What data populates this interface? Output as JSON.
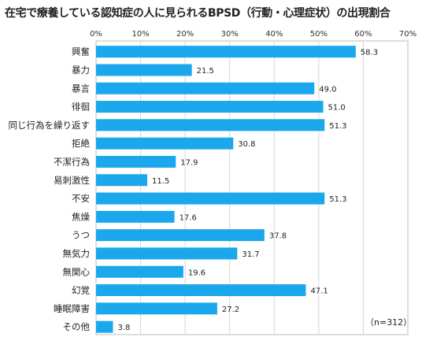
{
  "title": "在宅で療養している認知症の人に見られるBPSD（行動・心理症状）の出現割合",
  "note": "（n=312）",
  "chart_data": {
    "type": "bar",
    "orientation": "horizontal",
    "title": "在宅で療養している認知症の人に見られるBPSD（行動・心理症状）の出現割合",
    "xlim": [
      0,
      70
    ],
    "tick_values": [
      0,
      10,
      20,
      30,
      40,
      50,
      60,
      70
    ],
    "tick_labels": [
      "0%",
      "10%",
      "20%",
      "30%",
      "40%",
      "50%",
      "60%",
      "70%"
    ],
    "grid": true,
    "bar_color": "#1aa7ec",
    "categories": [
      "興奮",
      "暴力",
      "暴言",
      "徘徊",
      "同じ行為を繰り返す",
      "拒絶",
      "不潔行為",
      "易刺激性",
      "不安",
      "焦燥",
      "うつ",
      "無気力",
      "無関心",
      "幻覚",
      "睡眠障害",
      "その他"
    ],
    "values": [
      58.3,
      21.5,
      49.0,
      51.0,
      51.3,
      30.8,
      17.9,
      11.5,
      51.3,
      17.6,
      37.8,
      31.7,
      19.6,
      47.1,
      27.2,
      3.8
    ],
    "value_labels": [
      "58.3",
      "21.5",
      "49.0",
      "51.0",
      "51.3",
      "30.8",
      "17.9",
      "11.5",
      "51.3",
      "17.6",
      "37.8",
      "31.7",
      "19.6",
      "47.1",
      "27.2",
      "3.8"
    ]
  }
}
